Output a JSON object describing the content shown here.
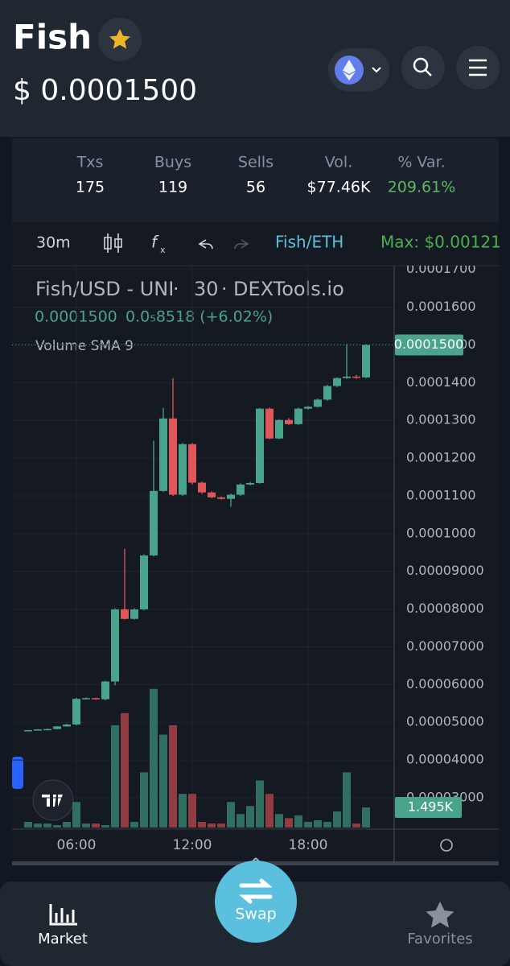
{
  "header": {
    "title": "Fish",
    "price": "$ 0.0001500"
  },
  "stats": [
    {
      "label": "Txs",
      "value": 175
    },
    {
      "label": "Buys",
      "value": 119
    },
    {
      "label": "Sells",
      "value": 56
    },
    {
      "label": "Vol.",
      "value": "$77.46K"
    },
    {
      "label": "% Var.",
      "value": "209.61%"
    }
  ],
  "toolbar": {
    "interval": "30m",
    "pair": "Fish/ETH",
    "max": "Max: $0.00121"
  },
  "nav": {
    "market": "Market",
    "swap": "Swap",
    "favorites": "Favorites"
  },
  "chart_data": {
    "type": "candlestick",
    "title": "Fish/USD - UNI",
    "interval": "30",
    "source": "DEXTools.io",
    "legend_values": [
      "0.0001500",
      "0.0₅8518 (+6.02%)"
    ],
    "indicator": "Volume SMA 9",
    "categories": [
      null,
      null,
      null,
      null,
      null,
      "06:00",
      null,
      null,
      null,
      null,
      null,
      null,
      null,
      null,
      null,
      null,
      null,
      "12:00",
      null,
      null,
      null,
      null,
      null,
      null,
      null,
      null,
      null,
      null,
      null,
      "18:00",
      null,
      null,
      null,
      null,
      null,
      null
    ],
    "open": [
      4.78e-05,
      4.79e-05,
      4.81e-05,
      4.82e-05,
      4.89e-05,
      4.94e-05,
      5.62e-05,
      5.64e-05,
      5.61e-05,
      6.08e-05,
      7.99e-05,
      7.74e-05,
      7.99e-05,
      9.42e-05,
      0.0001113,
      0.0001305,
      0.0001103,
      0.0001237,
      0.0001135,
      0.0001109,
      0.0001096,
      0.0001092,
      0.0001103,
      0.000113,
      0.0001134,
      0.0001331,
      0.0001252,
      0.0001301,
      0.000129,
      0.0001331,
      0.0001336,
      0.0001355,
      0.0001391,
      0.0001412,
      0.0001416,
      0.0001414
    ],
    "high": [
      4.8e-05,
      4.82e-05,
      4.83e-05,
      4.9e-05,
      4.96e-05,
      5.65e-05,
      5.66e-05,
      5.65e-05,
      6.1e-05,
      8.02e-05,
      9.6e-05,
      8.02e-05,
      9.45e-05,
      0.0001246,
      0.0001333,
      0.0001412,
      0.000124,
      0.000124,
      0.0001138,
      0.0001112,
      0.0001098,
      0.0001106,
      0.0001133,
      0.0001137,
      0.0001333,
      0.0001334,
      0.0001303,
      0.0001306,
      0.0001334,
      0.0001338,
      0.0001358,
      0.0001394,
      0.0001414,
      0.0001502,
      0.000142,
      0.0001502
    ],
    "low": [
      4.76e-05,
      4.78e-05,
      4.8e-05,
      4.81e-05,
      4.88e-05,
      4.92e-05,
      5.6e-05,
      5.59e-05,
      5.58e-05,
      5.98e-05,
      7.72e-05,
      7.72e-05,
      7.97e-05,
      9.4e-05,
      0.000111,
      0.00011,
      0.00011,
      0.000113,
      0.0001105,
      0.0001094,
      0.000109,
      0.0001071,
      0.00011,
      0.0001128,
      0.0001132,
      0.000125,
      0.000125,
      0.0001288,
      0.0001288,
      0.0001329,
      0.0001334,
      0.0001352,
      0.0001388,
      0.000141,
      0.000141,
      0.0001412
    ],
    "close": [
      4.79e-05,
      4.81e-05,
      4.82e-05,
      4.89e-05,
      4.94e-05,
      5.62e-05,
      5.64e-05,
      5.61e-05,
      6.08e-05,
      7.99e-05,
      7.74e-05,
      7.99e-05,
      9.42e-05,
      0.0001113,
      0.0001305,
      0.0001103,
      0.0001237,
      0.0001135,
      0.0001109,
      0.0001096,
      0.0001092,
      0.0001103,
      0.000113,
      0.0001134,
      0.0001331,
      0.0001252,
      0.0001301,
      0.000129,
      0.0001331,
      0.0001336,
      0.0001355,
      0.0001391,
      0.0001412,
      0.0001416,
      0.0001414,
      0.00015
    ],
    "volume": [
      420,
      300,
      300,
      180,
      420,
      1900,
      300,
      300,
      180,
      7600,
      8500,
      420,
      4100,
      10300,
      6900,
      7600,
      2500,
      2500,
      420,
      300,
      300,
      1900,
      1000,
      1600,
      3500,
      2500,
      1000,
      700,
      900,
      420,
      540,
      420,
      1200,
      4100,
      300,
      1495
    ],
    "up_color": "#4aa38b",
    "down_color": "#e0575b",
    "volume_up_color": "#2f6e61",
    "volume_down_color": "#8f3c43",
    "ylim": [
      2.21e-05,
      0.000171
    ],
    "y2lim": [
      0,
      41740
    ],
    "grid": true,
    "yticks": [
      {
        "value": 0.00017,
        "label": "0.0001700"
      },
      {
        "value": 0.00016,
        "label": "0.0001600"
      },
      {
        "value": 0.00015,
        "label": "0.0001500"
      },
      {
        "value": 0.00014,
        "label": "0.0001400"
      },
      {
        "value": 0.00013,
        "label": "0.0001300"
      },
      {
        "value": 0.00012,
        "label": "0.0001200"
      },
      {
        "value": 0.00011,
        "label": "0.0001100"
      },
      {
        "value": 0.0001,
        "label": "0.0001000"
      },
      {
        "value": 9e-05,
        "label": "0.00009000"
      },
      {
        "value": 8e-05,
        "label": "0.00008000"
      },
      {
        "value": 7e-05,
        "label": "0.00007000"
      },
      {
        "value": 6e-05,
        "label": "0.00006000"
      },
      {
        "value": 5e-05,
        "label": "0.00005000"
      },
      {
        "value": 4e-05,
        "label": "0.00004000"
      },
      {
        "value": 3e-05,
        "label": "0.00003000"
      }
    ],
    "price_marker": {
      "value": 0.00015,
      "label": "0.0001500"
    },
    "volume_marker": {
      "value": 1495,
      "label": "1.495K"
    }
  }
}
